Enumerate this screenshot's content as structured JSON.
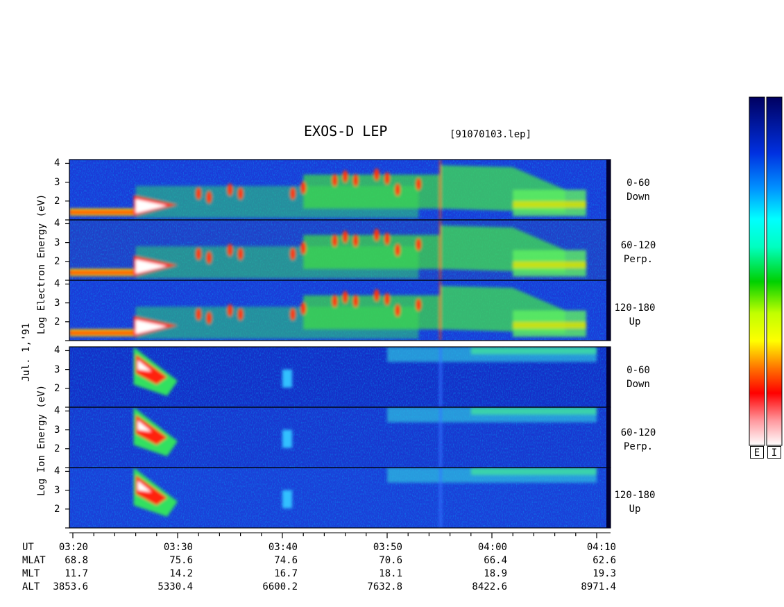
{
  "header": {
    "title": "EXOS-D LEP",
    "file": "[91070103.lep]"
  },
  "axis_labels": {
    "electron": "Log Electron Energy (eV)",
    "ion": "Log Ion Energy (eV)",
    "date": "Jul. 1,'91"
  },
  "panel_labels": [
    {
      "angle": "0-60",
      "dir": "Down"
    },
    {
      "angle": "60-120",
      "dir": "Perp."
    },
    {
      "angle": "120-180",
      "dir": "Up"
    },
    {
      "angle": "0-60",
      "dir": "Down"
    },
    {
      "angle": "60-120",
      "dir": "Perp."
    },
    {
      "angle": "120-180",
      "dir": "Up"
    }
  ],
  "y_ticks": [
    "4",
    "3",
    "2"
  ],
  "colorbars": {
    "electron": "E",
    "ion": "I"
  },
  "orbit_table": {
    "row_labels": [
      "UT",
      "MLAT",
      "MLT",
      "ALT"
    ],
    "columns": [
      {
        "UT": "03:20",
        "MLAT": "68.8",
        "MLT": "11.7",
        "ALT": "3853.6"
      },
      {
        "UT": "03:30",
        "MLAT": "75.6",
        "MLT": "14.2",
        "ALT": "5330.4"
      },
      {
        "UT": "03:40",
        "MLAT": "74.6",
        "MLT": "16.7",
        "ALT": "6600.2"
      },
      {
        "UT": "03:50",
        "MLAT": "70.6",
        "MLT": "18.1",
        "ALT": "7632.8"
      },
      {
        "UT": "04:00",
        "MLAT": "66.4",
        "MLT": "18.9",
        "ALT": "8422.6"
      },
      {
        "UT": "04:10",
        "MLAT": "62.6",
        "MLT": "19.3",
        "ALT": "8971.4"
      }
    ]
  },
  "chart_data": {
    "type": "heatmap",
    "x_unit": "UT",
    "x_ticks": [
      "03:20",
      "03:30",
      "03:40",
      "03:50",
      "04:00",
      "04:10"
    ],
    "xlim": [
      "03:20",
      "04:11"
    ],
    "ylim": [
      1,
      4.2
    ],
    "y_scale": "log10 energy (eV)",
    "panels": [
      {
        "species": "electron",
        "pitch_angle": "0-60",
        "direction": "Down"
      },
      {
        "species": "electron",
        "pitch_angle": "60-120",
        "direction": "Perp."
      },
      {
        "species": "electron",
        "pitch_angle": "120-180",
        "direction": "Up"
      },
      {
        "species": "ion",
        "pitch_angle": "0-60",
        "direction": "Down"
      },
      {
        "species": "ion",
        "pitch_angle": "60-120",
        "direction": "Perp."
      },
      {
        "species": "ion",
        "pitch_angle": "120-180",
        "direction": "Up"
      }
    ],
    "colormap": [
      "#ffffff",
      "#ff9090",
      "#ff0000",
      "#ff8000",
      "#ffff00",
      "#00e000",
      "#00ffff",
      "#0080ff",
      "#0000c0",
      "#000060"
    ],
    "legend_placement": "right"
  }
}
